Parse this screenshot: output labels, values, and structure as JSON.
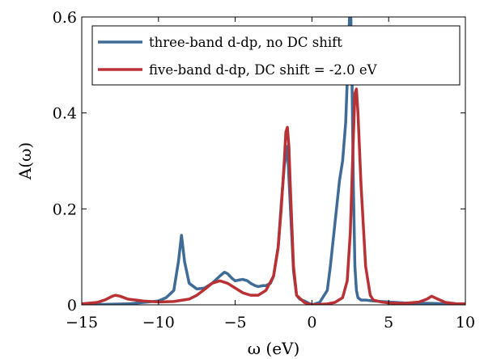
{
  "chart_data": {
    "type": "line",
    "xlabel": "ω (eV)",
    "ylabel": "A(ω)",
    "xlim": [
      -15,
      10
    ],
    "ylim": [
      0,
      0.6
    ],
    "xticks": [
      -15,
      -10,
      -5,
      0,
      5,
      10
    ],
    "xtick_labels": [
      "−15",
      "−10",
      "−5",
      "0",
      "5",
      "10"
    ],
    "yticks": [
      0,
      0.2,
      0.4,
      0.6
    ],
    "ytick_labels": [
      "0",
      "0.2",
      "0.4",
      "0.6"
    ],
    "grid": false,
    "legend_position": "top-right",
    "series": [
      {
        "name": "three-band d-dp, no DC shift",
        "color": "#3f6c96",
        "x": [
          -15,
          -12,
          -10,
          -9.5,
          -9.0,
          -8.7,
          -8.5,
          -8.3,
          -8.0,
          -7.5,
          -7.0,
          -6.5,
          -6.0,
          -5.7,
          -5.5,
          -5.2,
          -5.0,
          -4.7,
          -4.5,
          -4.2,
          -4.0,
          -3.7,
          -3.5,
          -3.2,
          -3.0,
          -2.7,
          -2.5,
          -2.2,
          -2.0,
          -1.8,
          -1.6,
          -1.4,
          -1.2,
          -1.0,
          -0.8,
          -0.5,
          0,
          0.5,
          1.0,
          1.2,
          1.5,
          1.8,
          2.0,
          2.2,
          2.4,
          2.5,
          2.6,
          2.7,
          2.8,
          2.9,
          3.0,
          3.2,
          3.5,
          4.0,
          5.0,
          6.0,
          8.0,
          10
        ],
        "y": [
          0.0,
          0.002,
          0.008,
          0.015,
          0.03,
          0.09,
          0.145,
          0.09,
          0.045,
          0.033,
          0.035,
          0.045,
          0.06,
          0.068,
          0.065,
          0.055,
          0.05,
          0.052,
          0.053,
          0.05,
          0.045,
          0.04,
          0.038,
          0.04,
          0.04,
          0.045,
          0.06,
          0.12,
          0.21,
          0.29,
          0.33,
          0.2,
          0.07,
          0.02,
          0.012,
          0.008,
          0.0,
          0.005,
          0.03,
          0.08,
          0.17,
          0.26,
          0.3,
          0.38,
          0.55,
          0.65,
          0.5,
          0.25,
          0.08,
          0.03,
          0.015,
          0.01,
          0.01,
          0.008,
          0.006,
          0.004,
          0.003,
          0.0
        ]
      },
      {
        "name": "five-band d-dp, DC shift = -2.0 eV",
        "color": "#b83135",
        "x": [
          -15,
          -14,
          -13.5,
          -13,
          -12.8,
          -12.5,
          -12,
          -11,
          -10,
          -9,
          -8.0,
          -7.5,
          -7.0,
          -6.5,
          -6.0,
          -5.5,
          -5.0,
          -4.5,
          -4.0,
          -3.5,
          -3.0,
          -2.5,
          -2.2,
          -2.0,
          -1.8,
          -1.7,
          -1.6,
          -1.5,
          -1.4,
          -1.2,
          -1.0,
          -0.5,
          0,
          1.0,
          1.5,
          2.0,
          2.3,
          2.5,
          2.7,
          2.8,
          2.9,
          3.0,
          3.2,
          3.5,
          3.8,
          4.0,
          4.5,
          5.0,
          6.0,
          7.0,
          7.5,
          7.8,
          8.2,
          8.7,
          9.5,
          10
        ],
        "y": [
          0.002,
          0.005,
          0.01,
          0.018,
          0.02,
          0.018,
          0.012,
          0.008,
          0.006,
          0.007,
          0.012,
          0.02,
          0.032,
          0.045,
          0.05,
          0.045,
          0.035,
          0.025,
          0.02,
          0.02,
          0.03,
          0.06,
          0.12,
          0.2,
          0.3,
          0.36,
          0.37,
          0.33,
          0.24,
          0.08,
          0.02,
          0.005,
          0.0,
          0.002,
          0.005,
          0.015,
          0.05,
          0.15,
          0.35,
          0.44,
          0.45,
          0.4,
          0.25,
          0.08,
          0.02,
          0.01,
          0.006,
          0.004,
          0.003,
          0.006,
          0.012,
          0.018,
          0.012,
          0.005,
          0.002,
          0.002
        ]
      }
    ]
  }
}
